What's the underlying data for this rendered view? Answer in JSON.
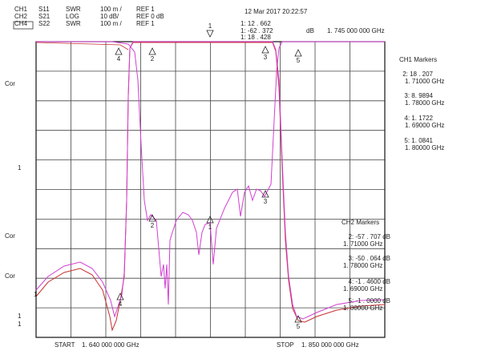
{
  "header": {
    "rows": [
      [
        "CH1",
        "S11",
        "SWR",
        "100 m /",
        "REF 1"
      ],
      [
        "CH2",
        "S21",
        "LOG",
        "10 dB/",
        "REF 0 dB"
      ],
      [
        "CH4",
        "S22",
        "SWR",
        "100 m /",
        "REF 1"
      ]
    ],
    "timestamp": "12 Mar 2017  20:22:57",
    "marker_readout": [
      "1: 12 . 662",
      "1: -62 . 372",
      "1: 18 . 428"
    ],
    "marker_unit": "dB",
    "marker_frequency": "1. 745  000  000  GHz"
  },
  "ch1_markers": {
    "title": "CH1  Markers",
    "items": [
      {
        "value": "2: 18 . 207",
        "freq": "1. 71000   GHz"
      },
      {
        "value": "3: 8. 9894",
        "freq": "1. 78000   GHz"
      },
      {
        "value": "4: 1. 1722",
        "freq": "1. 69000   GHz"
      },
      {
        "value": "5: 1. 0841",
        "freq": "1. 80000   GHz"
      }
    ]
  },
  "ch2_markers": {
    "title": "CH2  Markers",
    "items": [
      {
        "value": "2: -57 . 707  dB",
        "freq": "1. 71000   GHz"
      },
      {
        "value": "3: -50 . 064  dB",
        "freq": "1. 78000   GHz"
      },
      {
        "value": "4: -1 . 4600  dB",
        "freq": "1. 69000   GHz"
      },
      {
        "value": "5: -1 . 0000  dB",
        "freq": "1. 80000   GHz"
      }
    ]
  },
  "footer": {
    "start": "START",
    "start_freq": "1. 640  000  000  GHz",
    "stop": "STOP",
    "stop_freq": "1. 850  000  000  GHz"
  },
  "left_labels": [
    "Cor",
    "1",
    "Cor",
    "Cor",
    "1",
    "1",
    "1"
  ],
  "marker_flags": [
    "4",
    "2",
    "1",
    "3",
    "5",
    "4",
    "2",
    "1",
    "3",
    "5"
  ]
}
